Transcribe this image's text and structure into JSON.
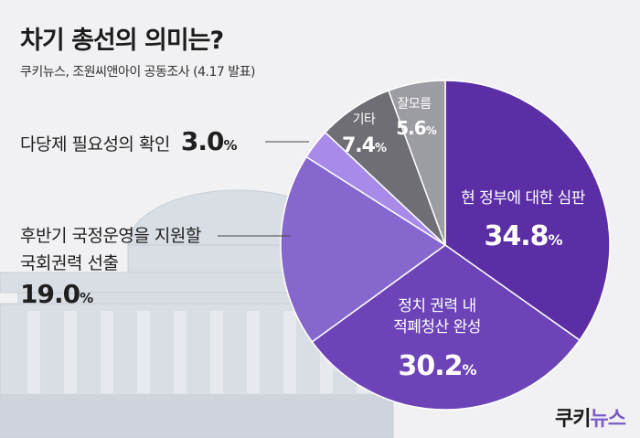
{
  "header": {
    "title": "차기 총선의 의미는?",
    "subtitle": "쿠키뉴스, 조원씨앤아이 공동조사 (4.17 발표)"
  },
  "brand": {
    "name": "쿠키뉴스",
    "part1": "쿠키",
    "part2": "뉴스"
  },
  "chart_data": {
    "type": "pie",
    "title": "차기 총선의 의미는?",
    "unit": "%",
    "slices": [
      {
        "label": "현 정부에 대한 심판",
        "lines": [
          "현 정부에 대한 심판"
        ],
        "value": 34.8,
        "display": "34.8",
        "color": "#5b2ea6"
      },
      {
        "label": "정치 권력 내 적폐청산 완성",
        "lines": [
          "정치 권력 내",
          "적폐청산 완성"
        ],
        "value": 30.2,
        "display": "30.2",
        "color": "#6d44b8"
      },
      {
        "label": "후반기 국정운영을 지원할 국회권력 선출",
        "lines": [
          "후반기 국정운영을 지원할",
          "국회권력 선출"
        ],
        "value": 19.0,
        "display": "19.0",
        "color": "#8667cd"
      },
      {
        "label": "다당제 필요성의 확인",
        "lines": [
          "다당제 필요성의 확인"
        ],
        "value": 3.0,
        "display": "3.0",
        "color": "#a88ae9"
      },
      {
        "label": "기타",
        "lines": [
          "기타"
        ],
        "value": 7.4,
        "display": "7.4",
        "color": "#6e6e74"
      },
      {
        "label": "잘모름",
        "lines": [
          "잘모름"
        ],
        "value": 5.6,
        "display": "5.6",
        "color": "#9c9ca3"
      }
    ]
  }
}
